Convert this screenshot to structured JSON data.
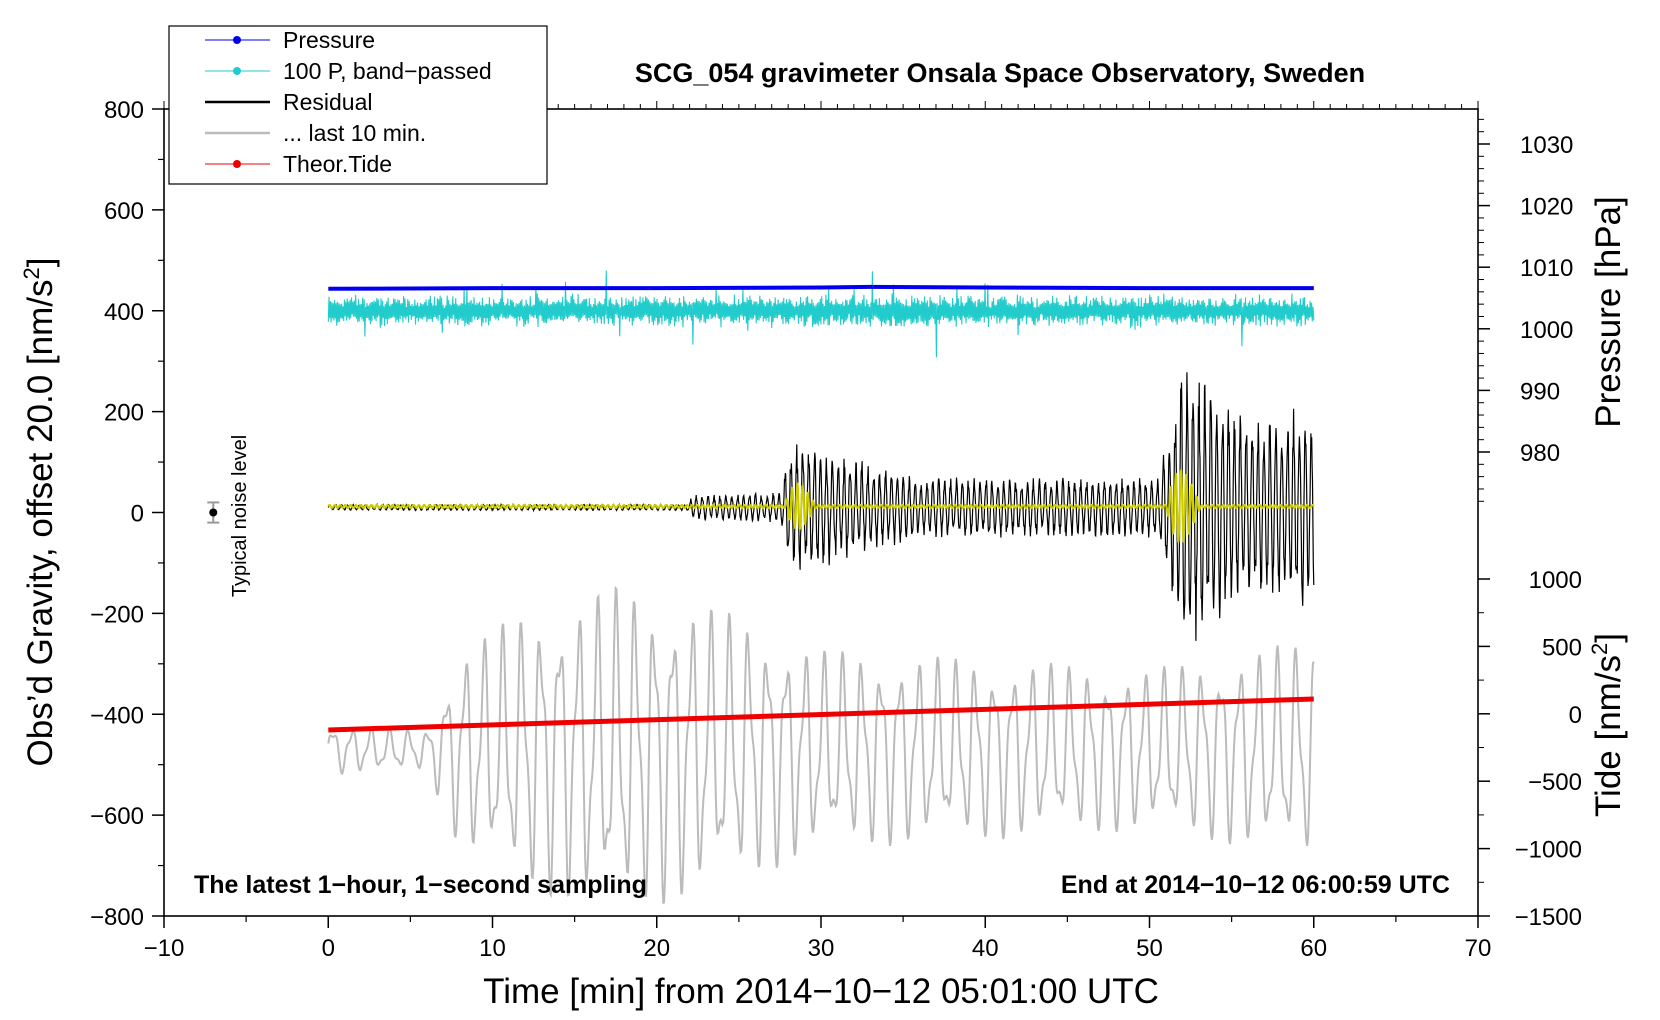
{
  "chart_data": {
    "type": "line",
    "title": "SCG_054 gravimeter Onsala Space Observatory, Sweden",
    "xlabel": "Time [min] from 2014−10−12 05:01:00 UTC",
    "ylabel": "Obs’d Gravity, offset 20.0 [nm/s",
    "ylabel_sup": "2",
    "ylabel_end": "]",
    "y2label": "Pressure [hPa]",
    "y3label": "Tide [nm/s",
    "y3label_sup": "2",
    "y3label_end": "]",
    "xlim": [
      -10,
      70
    ],
    "ylim": [
      -800,
      800
    ],
    "pressure_axis_range": [
      970,
      1035
    ],
    "tide_axis_range": [
      -1500,
      1000
    ],
    "x_ticks": [
      -10,
      0,
      10,
      20,
      30,
      40,
      50,
      60,
      70
    ],
    "x_tick_labels": [
      "−10",
      "0",
      "10",
      "20",
      "30",
      "40",
      "50",
      "60",
      "70"
    ],
    "y_ticks": [
      800,
      600,
      400,
      200,
      0,
      -200,
      -400,
      -600,
      -800
    ],
    "y_tick_labels": [
      "800",
      "600",
      "400",
      "200",
      "0",
      "−200",
      "−400",
      "−600",
      "−800"
    ],
    "pressure_ticks": [
      1030,
      1020,
      1010,
      1000,
      990,
      980
    ],
    "pressure_tick_labels": [
      "1030",
      "1020",
      "1010",
      "1000",
      "990",
      "980"
    ],
    "tide_ticks": [
      1000,
      500,
      0,
      -500,
      -1000,
      -1500
    ],
    "tide_tick_labels": [
      "1000",
      "500",
      "0",
      "−500",
      "−1000",
      "−1500"
    ],
    "legend": {
      "position": "top-left",
      "entries": [
        {
          "label": "Pressure",
          "color": "#0000ee",
          "marker": true
        },
        {
          "label": "100 P, band−passed",
          "color": "#22cccc",
          "marker": true
        },
        {
          "label": "Residual",
          "color": "#000000",
          "marker": false
        },
        {
          "label": "... last 10 min.",
          "color": "#bbbbbb",
          "marker": false
        },
        {
          "label": "Theor.Tide",
          "color": "#ee0000",
          "marker": true
        }
      ]
    },
    "annotations": {
      "left_bottom": "The latest 1−hour, 1−second sampling",
      "right_bottom": "End at 2014−10−12 06:00:59 UTC",
      "noise_label": "Typical noise level"
    },
    "noise_marker": {
      "x": -7,
      "y": 0,
      "err": 20
    },
    "series": [
      {
        "name": "Pressure",
        "axis": "pressure",
        "x": [
          0,
          10,
          20,
          30,
          33,
          40,
          50,
          60
        ],
        "values": [
          1006.5,
          1006.6,
          1006.6,
          1006.7,
          1006.8,
          1006.7,
          1006.6,
          1006.6
        ]
      },
      {
        "name": "100 P, band-passed",
        "axis": "gravity",
        "x_start": 0,
        "x_end": 60,
        "center": 400,
        "typical_amplitude": 25,
        "max_amplitude": 100
      },
      {
        "name": "Residual",
        "axis": "gravity",
        "x_start": 0,
        "x_end": 60,
        "center": 10,
        "envelope": {
          "x": [
            0,
            22,
            22.1,
            27.5,
            28,
            29,
            31,
            33,
            36,
            50.5,
            51,
            52,
            54,
            56,
            58,
            60
          ],
          "amplitude": [
            6,
            6,
            25,
            30,
            110,
            140,
            110,
            90,
            60,
            60,
            140,
            300,
            240,
            180,
            200,
            210
          ]
        }
      },
      {
        "name": "... last 10 min.",
        "axis": "gravity",
        "x_start": 0,
        "x_end": 60,
        "center": -470,
        "envelope": {
          "x": [
            0,
            6,
            8,
            12,
            18,
            24,
            30,
            40,
            50,
            60
          ],
          "amplitude": [
            50,
            40,
            200,
            280,
            330,
            280,
            200,
            180,
            160,
            220
          ]
        }
      },
      {
        "name": "Theor.Tide",
        "axis": "tide",
        "x": [
          0,
          60
        ],
        "values": [
          -120,
          110
        ]
      },
      {
        "name": "Residual (filtered)",
        "axis": "gravity",
        "color": "#cccc00",
        "x_start": 0,
        "x_end": 60,
        "center": 12,
        "bursts": [
          {
            "x_start": 27.8,
            "x_end": 30.5,
            "amplitude": 70
          },
          {
            "x_start": 51,
            "x_end": 54,
            "amplitude": 110
          }
        ]
      }
    ]
  }
}
